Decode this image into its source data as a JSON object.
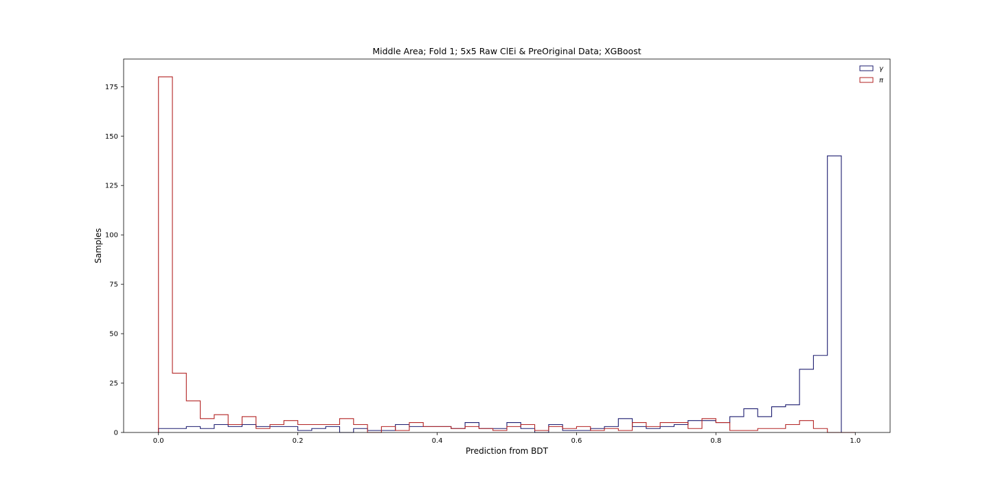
{
  "chart_data": {
    "type": "bar",
    "histtype": "step",
    "title": "Middle Area; Fold 1; 5x5 Raw ClEi & PreOriginal Data; XGBoost",
    "xlabel": "Prediction from BDT",
    "ylabel": "Samples",
    "xlim": [
      -0.05,
      1.05
    ],
    "ylim": [
      0,
      189
    ],
    "xticks": [
      0.0,
      0.2,
      0.4,
      0.6,
      0.8,
      1.0
    ],
    "xtick_labels": [
      "0.0",
      "0.2",
      "0.4",
      "0.6",
      "0.8",
      "1.0"
    ],
    "yticks": [
      0,
      25,
      50,
      75,
      100,
      125,
      150,
      175
    ],
    "ytick_labels": [
      "0",
      "25",
      "50",
      "75",
      "100",
      "125",
      "150",
      "175"
    ],
    "bins": 50,
    "bin_range": [
      0.0,
      1.0
    ],
    "grid": false,
    "legend_position": "top-right",
    "series": [
      {
        "name": "γ",
        "color": "#1a1a6e",
        "values": [
          2,
          2,
          3,
          2,
          4,
          3,
          4,
          3,
          3,
          3,
          1,
          2,
          3,
          0,
          2,
          1,
          1,
          4,
          3,
          3,
          3,
          2,
          5,
          2,
          2,
          5,
          2,
          0,
          4,
          1,
          1,
          2,
          3,
          7,
          3,
          2,
          3,
          4,
          6,
          6,
          5,
          8,
          12,
          8,
          13,
          14,
          32,
          39,
          140,
          0
        ]
      },
      {
        "name": "π",
        "color": "#b22222",
        "values": [
          180,
          30,
          16,
          7,
          9,
          4,
          8,
          2,
          4,
          6,
          4,
          4,
          4,
          7,
          4,
          0,
          3,
          1,
          5,
          3,
          3,
          2,
          3,
          2,
          1,
          3,
          4,
          1,
          3,
          2,
          3,
          1,
          2,
          1,
          5,
          3,
          5,
          5,
          2,
          7,
          5,
          1,
          1,
          2,
          2,
          4,
          6,
          2,
          0,
          0
        ]
      }
    ]
  }
}
